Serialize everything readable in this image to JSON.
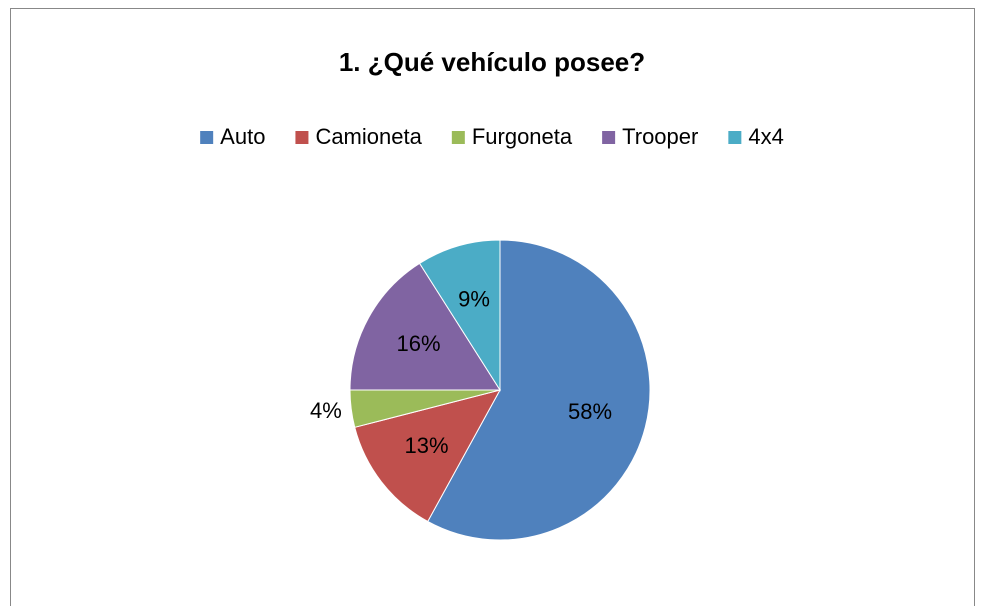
{
  "chart_data": {
    "type": "pie",
    "title": "1. ¿Qué vehículo posee?",
    "categories": [
      "Auto",
      "Camioneta",
      "Furgoneta",
      "Trooper",
      "4x4"
    ],
    "values": [
      58,
      13,
      4,
      16,
      9
    ],
    "value_labels": [
      "58%",
      "13%",
      "4%",
      "16%",
      "9%"
    ],
    "colors": [
      "#4f81bd",
      "#c0504d",
      "#9bbb59",
      "#8064a2",
      "#4bacc6"
    ],
    "legend": "top"
  }
}
